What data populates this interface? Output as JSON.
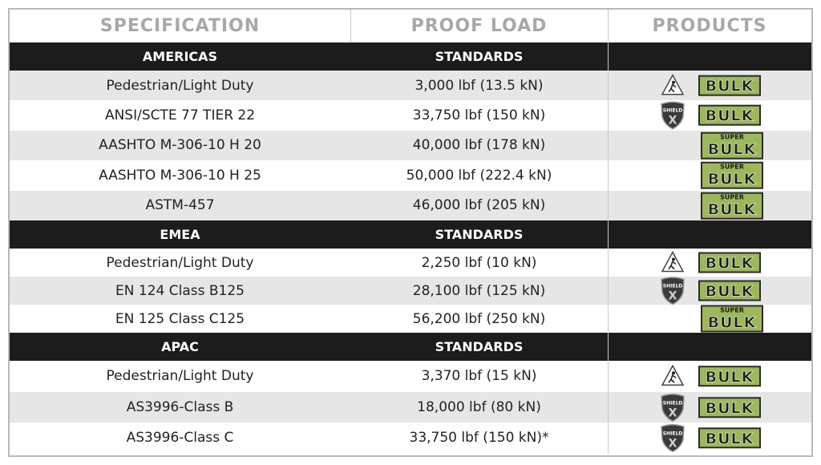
{
  "header": {
    "columns": [
      "SPECIFICATION",
      "PROOF LOAD",
      "PRODUCTS"
    ]
  },
  "logo_text": {
    "shield": "SHIELD",
    "shield_mark": "X",
    "bulk": "BULK",
    "super": "SUPER"
  },
  "sections": [
    {
      "name": "AMERICAS",
      "subtitle": "STANDARDS",
      "rows": [
        {
          "specification": "Pedestrian/Light Duty",
          "proof_load": "3,000 lbf (13.5 kN)",
          "products": [
            "pedestrian",
            "bulk"
          ],
          "shaded": true
        },
        {
          "specification": "ANSI/SCTE 77 TIER 22",
          "proof_load": "33,750 lbf (150 kN)",
          "products": [
            "shield",
            "bulk"
          ],
          "shaded": false
        },
        {
          "specification": "AASHTO M-306-10 H 20",
          "proof_load": "40,000 lbf (178 kN)",
          "products": [
            "super-bulk"
          ],
          "shaded": true
        },
        {
          "specification": "AASHTO M-306-10 H 25",
          "proof_load": "50,000 lbf (222.4 kN)",
          "products": [
            "super-bulk"
          ],
          "shaded": false
        },
        {
          "specification": "ASTM-457",
          "proof_load": "46,000 lbf (205 kN)",
          "products": [
            "super-bulk"
          ],
          "shaded": true
        }
      ]
    },
    {
      "name": "EMEA",
      "subtitle": "STANDARDS",
      "rows": [
        {
          "specification": "Pedestrian/Light Duty",
          "proof_load": "2,250 lbf (10 kN)",
          "products": [
            "pedestrian",
            "bulk"
          ],
          "shaded": false
        },
        {
          "specification": "EN 124 Class B125",
          "proof_load": "28,100 lbf (125 kN)",
          "products": [
            "shield",
            "bulk"
          ],
          "shaded": true
        },
        {
          "specification": "EN 125 Class C125",
          "proof_load": "56,200 lbf (250 kN)",
          "products": [
            "super-bulk"
          ],
          "shaded": false
        }
      ]
    },
    {
      "name": "APAC",
      "subtitle": "STANDARDS",
      "rows": [
        {
          "specification": "Pedestrian/Light Duty",
          "proof_load": "3,370 lbf (15 kN)",
          "products": [
            "pedestrian",
            "bulk"
          ],
          "shaded": false
        },
        {
          "specification": "AS3996-Class B",
          "proof_load": "18,000 lbf (80 kN)",
          "products": [
            "shield",
            "bulk"
          ],
          "shaded": true
        },
        {
          "specification": "AS3996-Class C",
          "proof_load": "33,750 lbf (150 kN)*",
          "products": [
            "shield",
            "bulk"
          ],
          "shaded": false
        }
      ]
    }
  ]
}
